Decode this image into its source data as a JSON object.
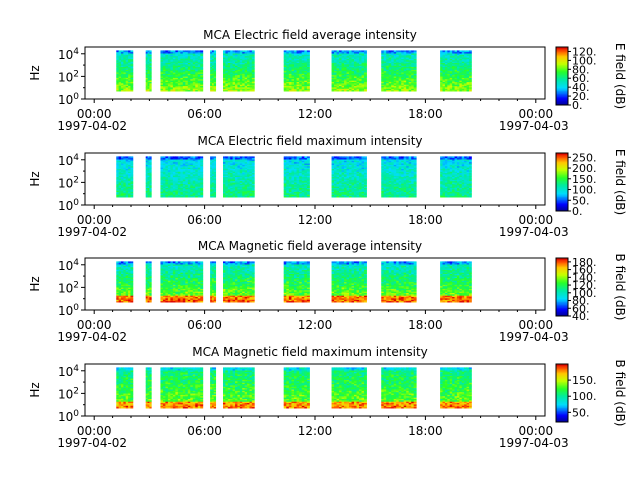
{
  "chart_data": [
    {
      "type": "heatmap",
      "title": "MCA  Electric field average intensity",
      "ylabel": "Hz",
      "y_scale": "log",
      "y_ticks": [
        "10^0",
        "10^2",
        "10^4"
      ],
      "x_ticks": [
        "00:00",
        "06:00",
        "12:00",
        "18:00",
        "00:00"
      ],
      "x_dates": [
        "1997-04-02",
        "1997-04-03"
      ],
      "xlim_hours": [
        -0.5,
        24.5
      ],
      "data_intervals_hours": [
        [
          1.2,
          2.1
        ],
        [
          2.8,
          3.1
        ],
        [
          3.6,
          5.9
        ],
        [
          6.3,
          6.6
        ],
        [
          7.0,
          8.7
        ],
        [
          10.3,
          11.7
        ],
        [
          12.9,
          14.8
        ],
        [
          15.6,
          17.5
        ],
        [
          18.8,
          20.5
        ]
      ],
      "colorbar": {
        "label": "E field (dB)",
        "range": [
          0,
          130
        ],
        "ticks": [
          "0.",
          "20.",
          "40.",
          "60.",
          "80.",
          "100.",
          "120."
        ],
        "tick_values": [
          0,
          20,
          40,
          60,
          80,
          100,
          120
        ]
      },
      "intensity_level": [
        0.5,
        0.58
      ]
    },
    {
      "type": "heatmap",
      "title": "MCA  Electric field maximum intensity",
      "ylabel": "Hz",
      "y_scale": "log",
      "y_ticks": [
        "10^0",
        "10^2",
        "10^4"
      ],
      "x_ticks": [
        "00:00",
        "06:00",
        "12:00",
        "18:00",
        "00:00"
      ],
      "x_dates": [
        "1997-04-02",
        "1997-04-03"
      ],
      "xlim_hours": [
        -0.5,
        24.5
      ],
      "data_intervals_hours": [
        [
          1.2,
          2.1
        ],
        [
          2.8,
          3.1
        ],
        [
          3.6,
          5.9
        ],
        [
          6.3,
          6.6
        ],
        [
          7.0,
          8.7
        ],
        [
          10.3,
          11.7
        ],
        [
          12.9,
          14.8
        ],
        [
          15.6,
          17.5
        ],
        [
          18.8,
          20.5
        ]
      ],
      "colorbar": {
        "label": "E field (dB)",
        "range": [
          0,
          270
        ],
        "ticks": [
          "0.",
          "50.",
          "100.",
          "150.",
          "200.",
          "250."
        ],
        "tick_values": [
          0,
          50,
          100,
          150,
          200,
          250
        ]
      },
      "intensity_level": [
        0.38,
        0.45
      ]
    },
    {
      "type": "heatmap",
      "title": "MCA  Magnetic field average intensity",
      "ylabel": "Hz",
      "y_scale": "log",
      "y_ticks": [
        "10^0",
        "10^2",
        "10^4"
      ],
      "x_ticks": [
        "00:00",
        "06:00",
        "12:00",
        "18:00",
        "00:00"
      ],
      "x_dates": [
        "1997-04-02",
        "1997-04-03"
      ],
      "xlim_hours": [
        -0.5,
        24.5
      ],
      "data_intervals_hours": [
        [
          1.2,
          2.1
        ],
        [
          2.8,
          3.1
        ],
        [
          3.6,
          5.9
        ],
        [
          6.3,
          6.6
        ],
        [
          7.0,
          8.7
        ],
        [
          10.3,
          11.7
        ],
        [
          12.9,
          14.8
        ],
        [
          15.6,
          17.5
        ],
        [
          18.8,
          20.5
        ]
      ],
      "colorbar": {
        "label": "B field (dB)",
        "range": [
          40,
          190
        ],
        "ticks": [
          "40.",
          "60.",
          "80.",
          "100.",
          "120.",
          "140.",
          "160.",
          "180."
        ],
        "tick_values": [
          40,
          60,
          80,
          100,
          120,
          140,
          160,
          180
        ]
      },
      "intensity_level": [
        0.5,
        0.6
      ]
    },
    {
      "type": "heatmap",
      "title": "MCA  Magnetic field maximum intensity",
      "ylabel": "Hz",
      "y_scale": "log",
      "y_ticks": [
        "10^0",
        "10^2",
        "10^4"
      ],
      "x_ticks": [
        "00:00",
        "06:00",
        "12:00",
        "18:00",
        "00:00"
      ],
      "x_dates": [
        "1997-04-02",
        "1997-04-03"
      ],
      "xlim_hours": [
        -0.5,
        24.5
      ],
      "data_intervals_hours": [
        [
          1.2,
          2.1
        ],
        [
          2.8,
          3.1
        ],
        [
          3.6,
          5.9
        ],
        [
          6.3,
          6.6
        ],
        [
          7.0,
          8.7
        ],
        [
          10.3,
          11.7
        ],
        [
          12.9,
          14.8
        ],
        [
          15.6,
          17.5
        ],
        [
          18.8,
          20.5
        ]
      ],
      "colorbar": {
        "label": "B field (dB)",
        "range": [
          20,
          200
        ],
        "ticks": [
          "50.",
          "100.",
          "150."
        ],
        "tick_values": [
          50,
          100,
          150
        ]
      },
      "intensity_level": [
        0.52,
        0.62
      ]
    }
  ]
}
